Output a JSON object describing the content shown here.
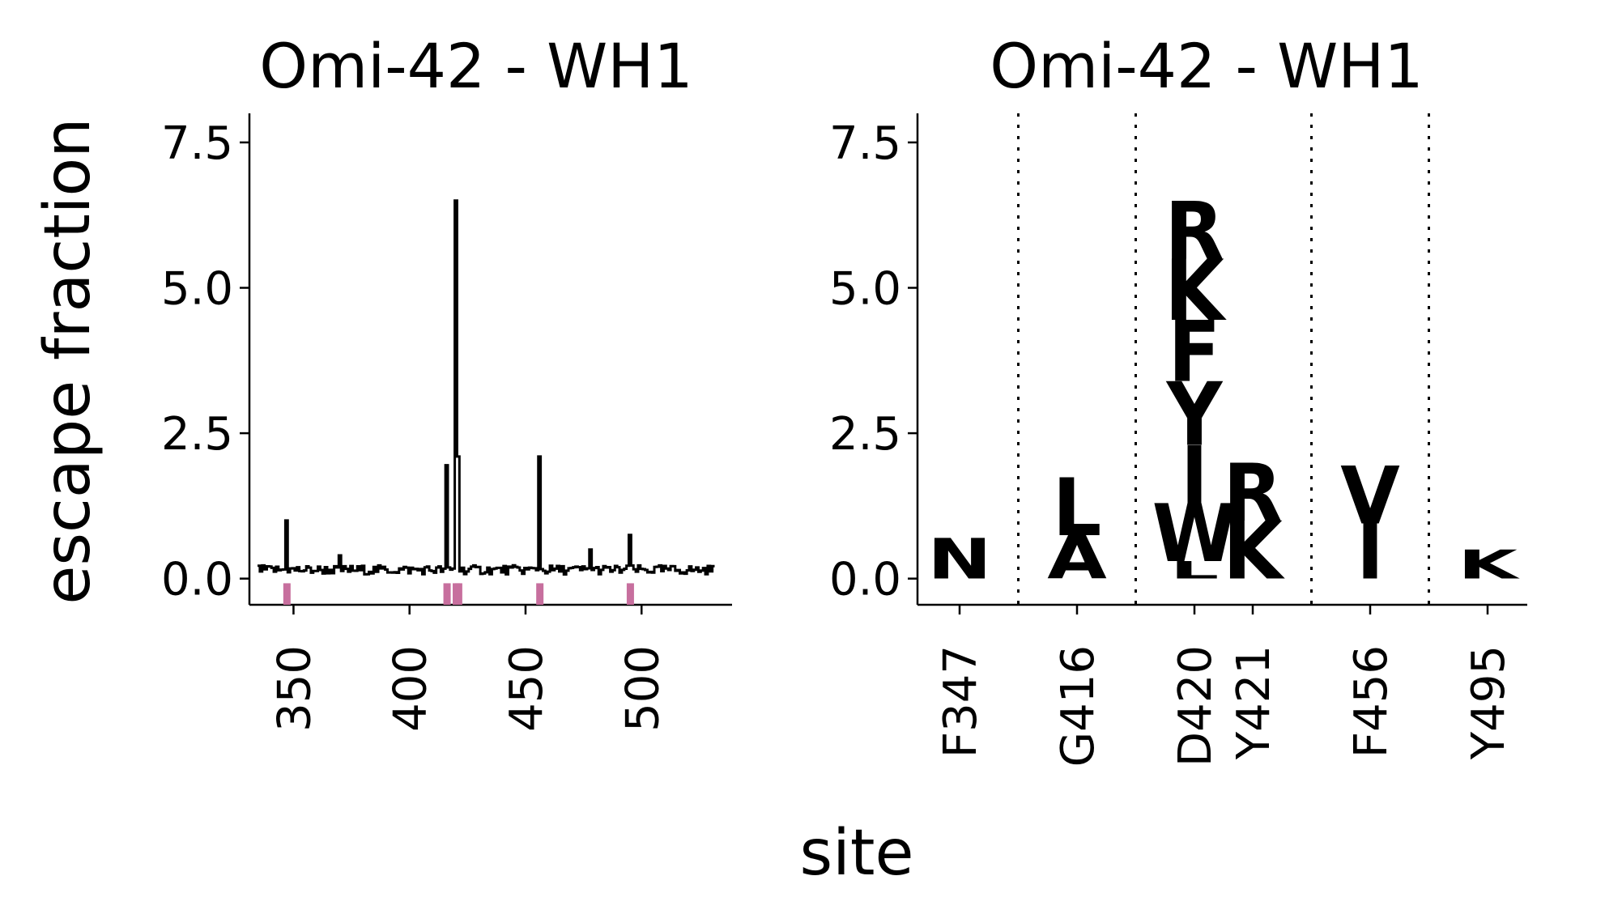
{
  "figure": {
    "ylabel": "escape fraction",
    "xlabel": "site"
  },
  "chart_data": [
    {
      "type": "line",
      "title": "Omi-42 - WH1",
      "xlabel": "",
      "ylabel": "escape fraction",
      "ylim": [
        -0.45,
        8.0
      ],
      "xlim": [
        331,
        539
      ],
      "xticks": [
        350,
        400,
        450,
        500
      ],
      "yticks": [
        0.0,
        2.5,
        5.0,
        7.5
      ],
      "ytick_labels": [
        "0.0",
        "2.5",
        "5.0",
        "7.5"
      ],
      "grid": false,
      "series": [
        {
          "color": "#000000",
          "line_style": "steps",
          "baseline_range": [
            335,
            531
          ],
          "baseline_mean": 0.15
        }
      ],
      "peaks": [
        {
          "site": 347,
          "value": 1.0
        },
        {
          "site": 370,
          "value": 0.4
        },
        {
          "site": 416,
          "value": 1.95
        },
        {
          "site": 420,
          "value": 6.5
        },
        {
          "site": 421,
          "value": 2.1
        },
        {
          "site": 456,
          "value": 2.1
        },
        {
          "site": 478,
          "value": 0.5
        },
        {
          "site": 495,
          "value": 0.75
        }
      ],
      "highlighted_sites": [
        347,
        416,
        420,
        421,
        456,
        495
      ],
      "highlight_color": "#c76f9e"
    },
    {
      "type": "logo",
      "title": "Omi-42 - WH1",
      "xlabel": "",
      "ylabel": "",
      "ylim": [
        -0.45,
        8.0
      ],
      "yticks": [
        0.0,
        2.5,
        5.0,
        7.5
      ],
      "ytick_labels": [
        "0.0",
        "2.5",
        "5.0",
        "7.5"
      ],
      "grid": false,
      "sites": [
        {
          "label": "F347",
          "group": 0,
          "letters": [
            {
              "aa": "N",
              "value": 0.7,
              "color": "#fde9a4"
            }
          ]
        },
        {
          "label": "G416",
          "group": 1,
          "letters": [
            {
              "aa": "A",
              "value": 0.75,
              "color": "#fde9a4"
            },
            {
              "aa": "L",
              "value": 1.0,
              "color": "#fde9a4"
            }
          ]
        },
        {
          "label": "D420",
          "group": 2,
          "letters": [
            {
              "aa": "L",
              "value": 0.3,
              "color": "#b84c0d"
            },
            {
              "aa": "W",
              "value": 1.0,
              "color": "#b84c0d"
            },
            {
              "aa": "I",
              "value": 1.0,
              "color": "#f28a25"
            },
            {
              "aa": "Y",
              "value": 1.1,
              "color": "#c6520a"
            },
            {
              "aa": "F",
              "value": 1.05,
              "color": "#c6520a"
            },
            {
              "aa": "K",
              "value": 1.05,
              "color": "#8c3308"
            },
            {
              "aa": "R",
              "value": 1.0,
              "color": "#8c3308"
            }
          ]
        },
        {
          "label": "Y421",
          "group": 2,
          "letters": [
            {
              "aa": "K",
              "value": 1.0,
              "color": "#c6520a"
            },
            {
              "aa": "R",
              "value": 1.0,
              "color": "#d0580a"
            }
          ]
        },
        {
          "label": "F456",
          "group": 3,
          "letters": [
            {
              "aa": "I",
              "value": 0.95,
              "color": "#fde9a4"
            },
            {
              "aa": "V",
              "value": 1.0,
              "color": "#f28a25"
            }
          ]
        },
        {
          "label": "Y495",
          "group": 4,
          "letters": [
            {
              "aa": "K",
              "value": 0.5,
              "color": "#fde9a4"
            }
          ]
        }
      ]
    }
  ]
}
